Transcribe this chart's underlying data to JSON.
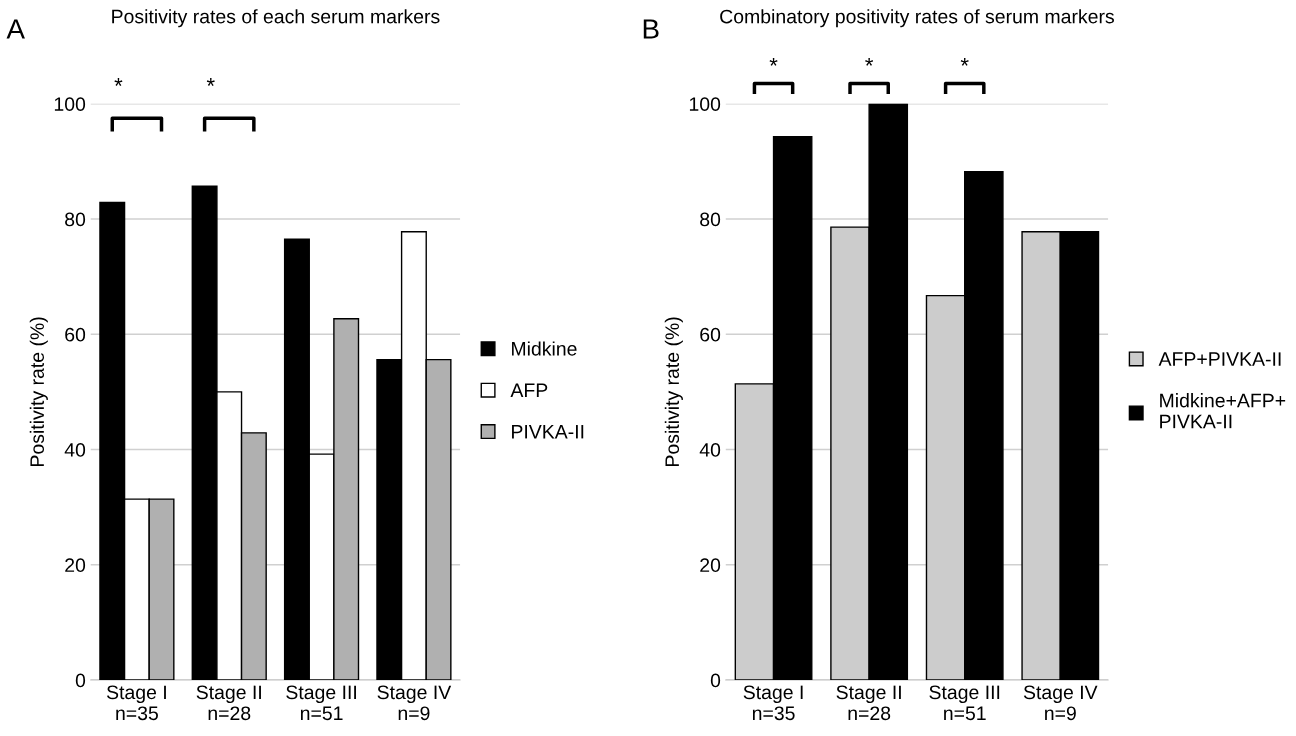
{
  "chart_data": [
    {
      "type": "bar",
      "title": "Positivity rates of each serum markers",
      "ylabel": "Positivity rate (%)",
      "categories": [
        "Stage I\nn=35",
        "Stage II\nn=28",
        "Stage III\nn=51",
        "Stage IV\nn=9"
      ],
      "series": [
        {
          "name": "Midkine",
          "color": "#000000",
          "values": [
            82.9,
            85.7,
            76.5,
            55.6
          ]
        },
        {
          "name": "AFP",
          "color": "#ffffff",
          "values": [
            31.4,
            50.0,
            39.2,
            77.8
          ]
        },
        {
          "name": "PIVKA-II",
          "color": "#b0b0b0",
          "values": [
            31.4,
            42.9,
            62.7,
            55.6
          ]
        }
      ],
      "ylim": [
        0,
        100
      ],
      "yticks": [
        0,
        20,
        40,
        60,
        80,
        100
      ],
      "grid": "y",
      "legend": "right",
      "annotations": [
        "A",
        "*",
        "*"
      ]
    },
    {
      "type": "bar",
      "title": "Combinatory positivity rates of serum markers",
      "ylabel": "Positivity rate (%)",
      "categories": [
        "Stage I\nn=35",
        "Stage II\nn=28",
        "Stage III\nn=51",
        "Stage IV\nn=9"
      ],
      "series": [
        {
          "name": "AFP+PIVKA-II",
          "color": "#cccccc",
          "values": [
            51.4,
            78.6,
            66.7,
            77.8
          ]
        },
        {
          "name": "Midkine+AFP+\nPIVKA-II",
          "color": "#000000",
          "values": [
            94.3,
            100,
            88.2,
            77.8
          ]
        }
      ],
      "ylim": [
        0,
        100
      ],
      "yticks": [
        0,
        20,
        40,
        60,
        80,
        100
      ],
      "grid": "y",
      "legend": "right",
      "annotations": [
        "B",
        "*",
        "*",
        "*"
      ]
    }
  ]
}
